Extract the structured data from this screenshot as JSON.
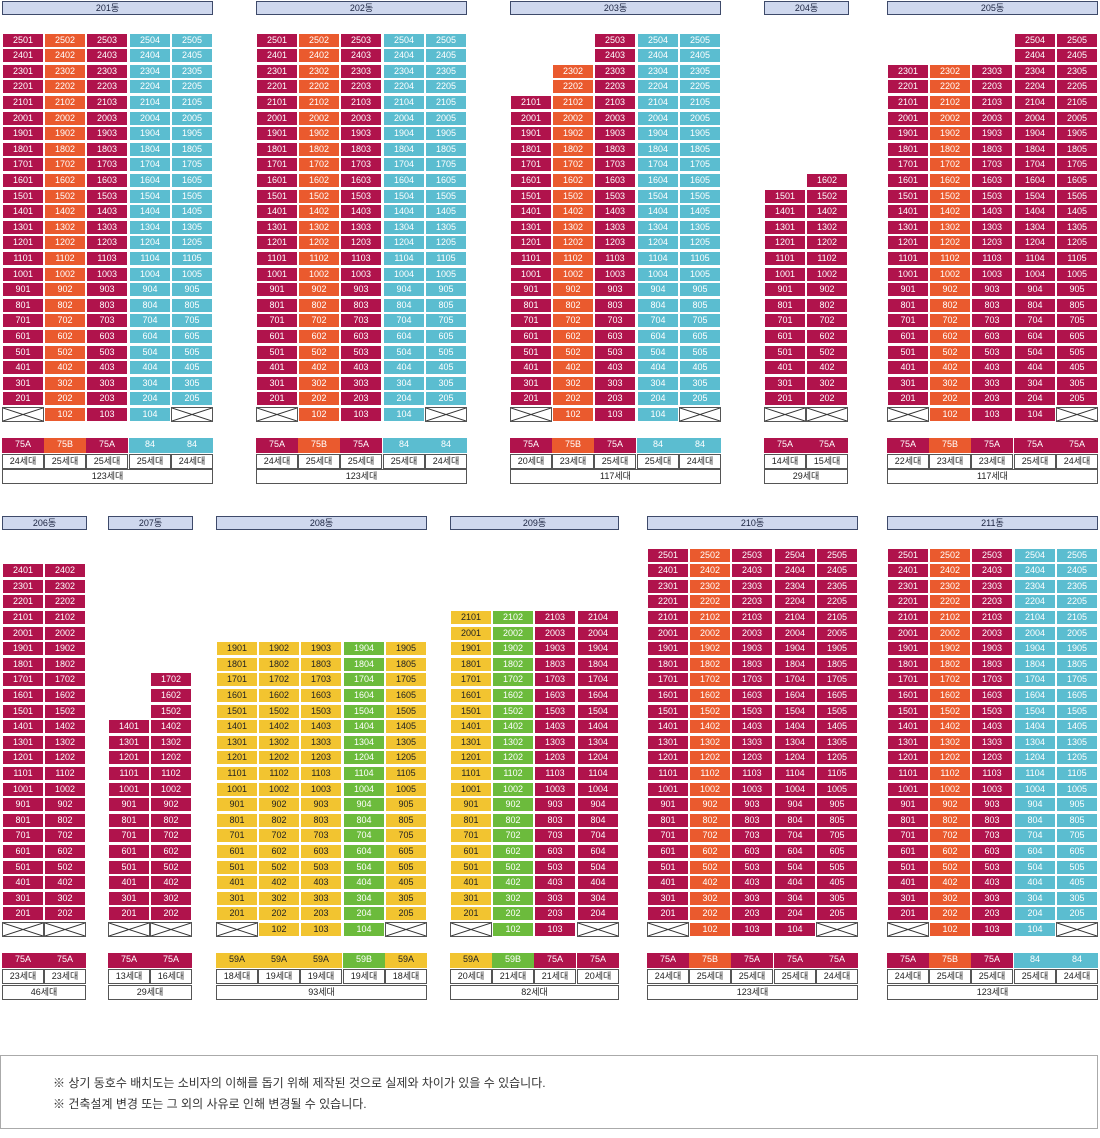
{
  "colors": {
    "red": "#b0134c",
    "orange": "#ea5a2e",
    "cyan": "#5bbdd0",
    "yellow": "#f2c430",
    "green": "#6cbb3c",
    "header_bg": "#cfd8ee"
  },
  "buildings": [
    {
      "name": "201동",
      "cols": [
        {
          "type": "75A",
          "color": "red",
          "count": "24세대",
          "top": 25,
          "empty": true
        },
        {
          "type": "75B",
          "color": "orange",
          "count": "25세대",
          "top": 25,
          "empty": false
        },
        {
          "type": "75A",
          "color": "red",
          "count": "25세대",
          "top": 25,
          "empty": false
        },
        {
          "type": "84",
          "color": "cyan",
          "count": "25세대",
          "top": 25,
          "empty": false
        },
        {
          "type": "84",
          "color": "cyan",
          "count": "24세대",
          "top": 25,
          "empty": true
        }
      ],
      "total": "123세대"
    },
    {
      "name": "202동",
      "cols": [
        {
          "type": "75A",
          "color": "red",
          "count": "24세대",
          "top": 25,
          "empty": true
        },
        {
          "type": "75B",
          "color": "orange",
          "count": "25세대",
          "top": 25,
          "empty": false
        },
        {
          "type": "75A",
          "color": "red",
          "count": "25세대",
          "top": 25,
          "empty": false
        },
        {
          "type": "84",
          "color": "cyan",
          "count": "25세대",
          "top": 25,
          "empty": false
        },
        {
          "type": "84",
          "color": "cyan",
          "count": "24세대",
          "top": 25,
          "empty": true
        }
      ],
      "total": "123세대"
    },
    {
      "name": "203동",
      "cols": [
        {
          "type": "75A",
          "color": "red",
          "count": "20세대",
          "top": 21,
          "empty": true
        },
        {
          "type": "75B",
          "color": "orange",
          "count": "23세대",
          "top": 23,
          "empty": false
        },
        {
          "type": "75A",
          "color": "red",
          "count": "25세대",
          "top": 25,
          "empty": false
        },
        {
          "type": "84",
          "color": "cyan",
          "count": "25세대",
          "top": 25,
          "empty": false
        },
        {
          "type": "84",
          "color": "cyan",
          "count": "24세대",
          "top": 25,
          "empty": true
        }
      ],
      "total": "117세대"
    },
    {
      "name": "204동",
      "cols": [
        {
          "type": "75A",
          "color": "red",
          "count": "14세대",
          "top": 15,
          "empty": true
        },
        {
          "type": "75A",
          "color": "red",
          "count": "15세대",
          "top": 16,
          "empty": true
        }
      ],
      "total": "29세대"
    },
    {
      "name": "205동",
      "cols": [
        {
          "type": "75A",
          "color": "red",
          "count": "22세대",
          "top": 23,
          "empty": true
        },
        {
          "type": "75B",
          "color": "orange",
          "count": "23세대",
          "top": 23,
          "empty": false
        },
        {
          "type": "75A",
          "color": "red",
          "count": "23세대",
          "top": 23,
          "empty": false
        },
        {
          "type": "75A",
          "color": "red",
          "count": "25세대",
          "top": 25,
          "empty": false
        },
        {
          "type": "75A",
          "color": "red",
          "count": "24세대",
          "top": 25,
          "empty": true
        }
      ],
      "total": "117세대"
    },
    {
      "name": "206동",
      "cols": [
        {
          "type": "75A",
          "color": "red",
          "count": "23세대",
          "top": 24,
          "empty": true
        },
        {
          "type": "75A",
          "color": "red",
          "count": "23세대",
          "top": 24,
          "empty": true
        }
      ],
      "total": "46세대"
    },
    {
      "name": "207동",
      "cols": [
        {
          "type": "75A",
          "color": "red",
          "count": "13세대",
          "top": 14,
          "empty": true
        },
        {
          "type": "75A",
          "color": "red",
          "count": "16세대",
          "top": 17,
          "empty": true
        }
      ],
      "total": "29세대"
    },
    {
      "name": "208동",
      "cols": [
        {
          "type": "59A",
          "color": "yellow",
          "count": "18세대",
          "top": 19,
          "empty": true
        },
        {
          "type": "59A",
          "color": "yellow",
          "count": "19세대",
          "top": 19,
          "empty": false
        },
        {
          "type": "59A",
          "color": "yellow",
          "count": "19세대",
          "top": 19,
          "empty": false
        },
        {
          "type": "59B",
          "color": "green",
          "count": "19세대",
          "top": 19,
          "empty": false
        },
        {
          "type": "59A",
          "color": "yellow",
          "count": "18세대",
          "top": 19,
          "empty": true
        }
      ],
      "total": "93세대"
    },
    {
      "name": "209동",
      "cols": [
        {
          "type": "59A",
          "color": "yellow",
          "count": "20세대",
          "top": 21,
          "empty": true
        },
        {
          "type": "59B",
          "color": "green",
          "count": "21세대",
          "top": 21,
          "empty": false
        },
        {
          "type": "75A",
          "color": "red",
          "count": "21세대",
          "top": 21,
          "empty": false
        },
        {
          "type": "75A",
          "color": "red",
          "count": "20세대",
          "top": 21,
          "empty": true
        }
      ],
      "total": "82세대"
    },
    {
      "name": "210동",
      "cols": [
        {
          "type": "75A",
          "color": "red",
          "count": "24세대",
          "top": 25,
          "empty": true
        },
        {
          "type": "75B",
          "color": "orange",
          "count": "25세대",
          "top": 25,
          "empty": false
        },
        {
          "type": "75A",
          "color": "red",
          "count": "25세대",
          "top": 25,
          "empty": false
        },
        {
          "type": "75A",
          "color": "red",
          "count": "25세대",
          "top": 25,
          "empty": false
        },
        {
          "type": "75A",
          "color": "red",
          "count": "24세대",
          "top": 25,
          "empty": true
        }
      ],
      "total": "123세대"
    },
    {
      "name": "211동",
      "cols": [
        {
          "type": "75A",
          "color": "red",
          "count": "24세대",
          "top": 25,
          "empty": true
        },
        {
          "type": "75B",
          "color": "orange",
          "count": "25세대",
          "top": 25,
          "empty": false
        },
        {
          "type": "75A",
          "color": "red",
          "count": "25세대",
          "top": 25,
          "empty": false
        },
        {
          "type": "84",
          "color": "cyan",
          "count": "25세대",
          "top": 25,
          "empty": false
        },
        {
          "type": "84",
          "color": "cyan",
          "count": "24세대",
          "top": 25,
          "empty": true
        }
      ],
      "total": "123세대"
    }
  ],
  "notes": [
    "※ 상기 동호수 배치도는 소비자의 이해를 돕기 위해 제작된 것으로 실제와 차이가 있을 수 있습니다.",
    "※ 건축설계 변경 또는 그 외의 사유로 인해 변경될 수 있습니다."
  ]
}
